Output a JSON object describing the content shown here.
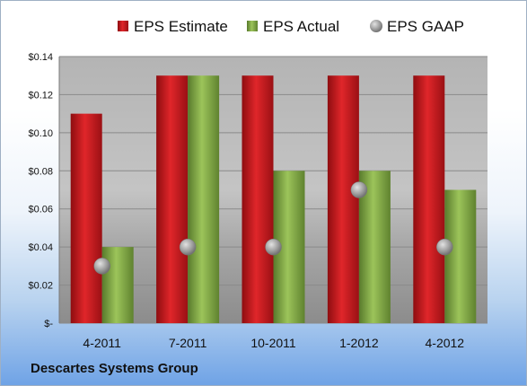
{
  "company": "Descartes Systems Group",
  "chart_data": {
    "type": "bar",
    "categories": [
      "4-2011",
      "7-2011",
      "10-2011",
      "1-2012",
      "4-2012"
    ],
    "series": [
      {
        "name": "EPS Estimate",
        "kind": "bar",
        "color": "#c8161b",
        "values": [
          0.11,
          0.13,
          0.13,
          0.13,
          0.13
        ]
      },
      {
        "name": "EPS Actual",
        "kind": "bar",
        "color": "#7fa542",
        "values": [
          0.04,
          0.13,
          0.08,
          0.08,
          0.07
        ]
      },
      {
        "name": "EPS GAAP",
        "kind": "point",
        "color": "#9a9a9a",
        "values": [
          0.03,
          0.04,
          0.04,
          0.07,
          0.04
        ]
      }
    ],
    "ylim": [
      0,
      0.14
    ],
    "yticks": [
      0,
      0.02,
      0.04,
      0.06,
      0.08,
      0.1,
      0.12,
      0.14
    ],
    "ytick_labels": [
      "$-",
      "$0.02",
      "$0.04",
      "$0.06",
      "$0.08",
      "$0.10",
      "$0.12",
      "$0.14"
    ],
    "grid": true,
    "legend_position": "top"
  }
}
